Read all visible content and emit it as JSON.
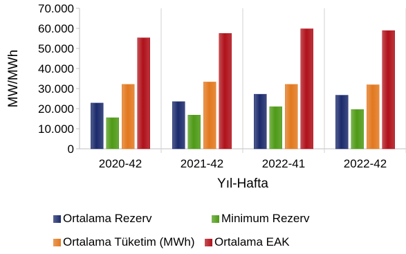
{
  "chart_data": {
    "type": "bar",
    "categories": [
      "2020-42",
      "2021-42",
      "2022-41",
      "2022-42"
    ],
    "series": [
      {
        "name": "Ortalama Rezerv",
        "values": [
          22800,
          23500,
          27200,
          26700
        ],
        "color": "#1b2a6b"
      },
      {
        "name": "Minimum Rezerv",
        "values": [
          15500,
          16800,
          21000,
          19600
        ],
        "color": "#4e9a16"
      },
      {
        "name": "Ortalama Tüketim (MWh)",
        "values": [
          32100,
          33300,
          32100,
          31900
        ],
        "color": "#e2781e"
      },
      {
        "name": "Ortalama EAK",
        "values": [
          55300,
          57500,
          59800,
          58900
        ],
        "color": "#b0111a"
      }
    ],
    "xlabel": "Yıl-Hafta",
    "ylabel": "MW/MWh",
    "ylim": [
      0,
      70000
    ],
    "yticks": [
      {
        "value": 0,
        "label": "0"
      },
      {
        "value": 10000,
        "label": "10.000"
      },
      {
        "value": 20000,
        "label": "20.000"
      },
      {
        "value": 30000,
        "label": "30.000"
      },
      {
        "value": 40000,
        "label": "40.000"
      },
      {
        "value": 50000,
        "label": "50.000"
      },
      {
        "value": 60000,
        "label": "60.000"
      },
      {
        "value": 70000,
        "label": "70.000"
      }
    ],
    "grid": "vertical separators between categories",
    "legend_position": "bottom"
  }
}
